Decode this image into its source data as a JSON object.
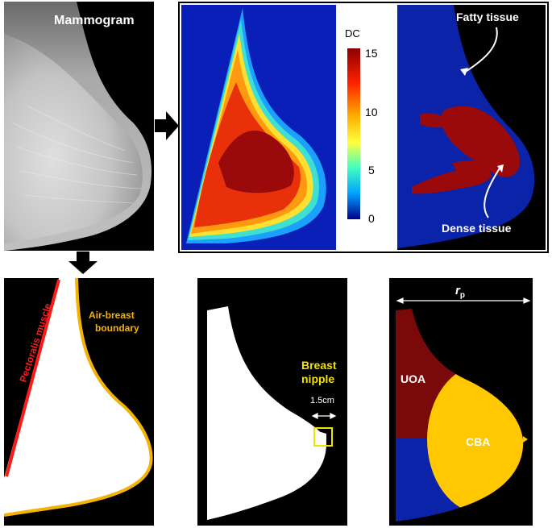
{
  "mammogram": {
    "label": "Mammogram"
  },
  "colorbar": {
    "title": "DC",
    "ticks": [
      "15",
      "10",
      "5",
      "0"
    ]
  },
  "tissue_map": {
    "fatty_label": "Fatty tissue",
    "dense_label": "Dense tissue"
  },
  "segmentation": {
    "pectoralis_label": "Pectoralis muscle",
    "boundary_label_line1": "Air-breast",
    "boundary_label_line2": "boundary"
  },
  "mask": {
    "nipple_label_line1": "Breast",
    "nipple_label_line2": "nipple",
    "distance_label": "1.5cm"
  },
  "regions": {
    "radius_symbol": "r",
    "radius_subscript": "p",
    "uoa_label": "UOA",
    "cba_label": "CBA"
  },
  "colors": {
    "fatty": "#0a23a8",
    "dense": "#9b0a0a",
    "boundary": "#f2b400",
    "pectoralis": "#ff1a1a",
    "nipple_box": "#f5e100",
    "uoa": "#7a0a0a",
    "cba": "#ffc800"
  }
}
